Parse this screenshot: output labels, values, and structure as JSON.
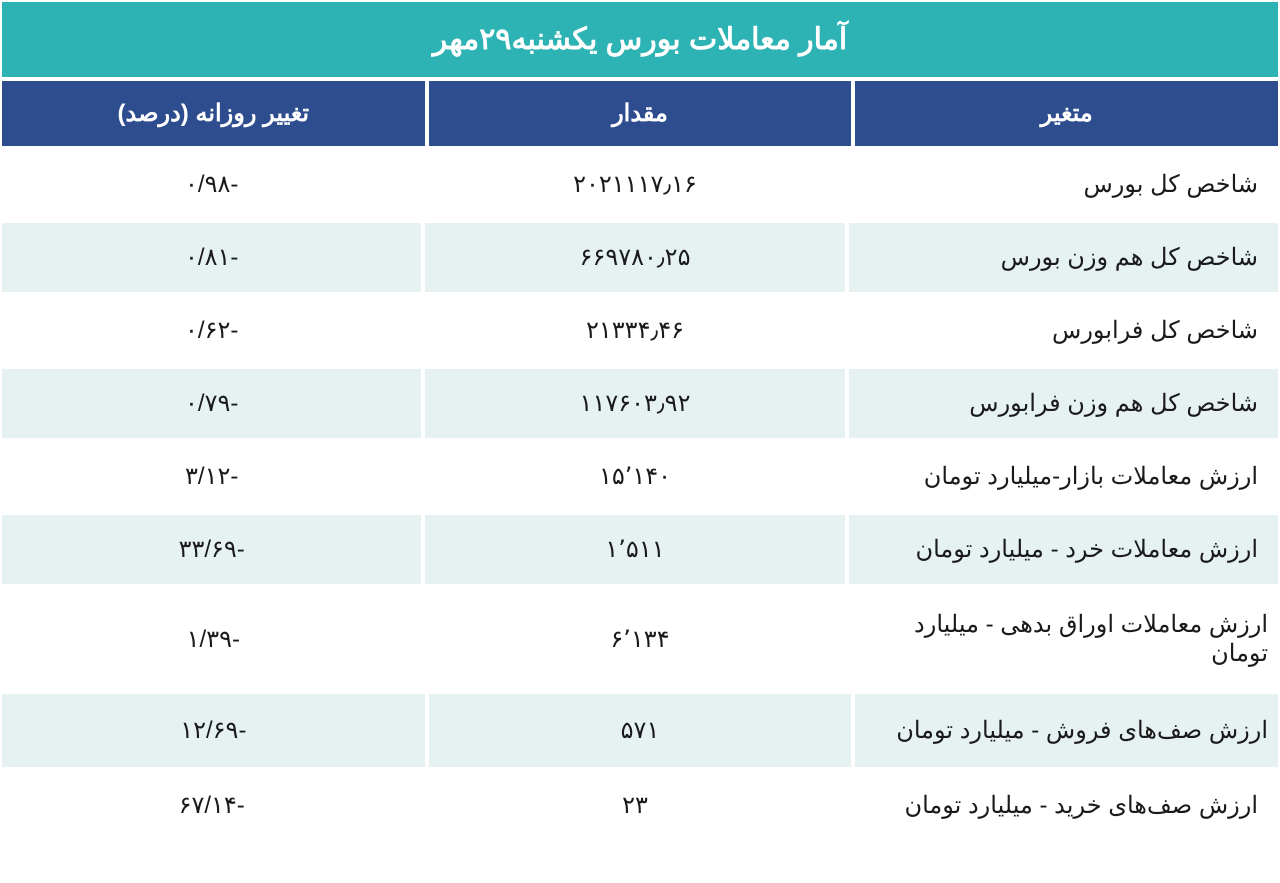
{
  "table": {
    "title": "آمار معاملات بورس یکشنبه۲۹مهر",
    "columns": {
      "variable": "متغیر",
      "value": "مقدار",
      "change": "تغییر روزانه (درصد)"
    },
    "rows": [
      {
        "variable": "شاخص کل بورس",
        "value": "۲۰۲۱۱۱۷٫۱۶",
        "change": "-۰/۹۸"
      },
      {
        "variable": "شاخص کل هم وزن بورس",
        "value": "۶۶۹۷۸۰٫۲۵",
        "change": "-۰/۸۱"
      },
      {
        "variable": "شاخص کل فرابورس",
        "value": "۲۱۳۳۴٫۴۶",
        "change": "-۰/۶۲"
      },
      {
        "variable": "شاخص کل هم وزن فرابورس",
        "value": "۱۱۷۶۰۳٫۹۲",
        "change": "-۰/۷۹"
      },
      {
        "variable": "ارزش معاملات بازار-میلیارد تومان",
        "value": "۱۵٬۱۴۰",
        "change": "-۳/۱۲"
      },
      {
        "variable": "ارزش معاملات خرد - میلیارد تومان",
        "value": "۱٬۵۱۱",
        "change": "-۳۳/۶۹"
      },
      {
        "variable": "ارزش معاملات اوراق بدهی - میلیارد تومان",
        "value": "۶٬۱۳۴",
        "change": "-۱/۳۹"
      },
      {
        "variable": "ارزش صف‌های فروش - میلیارد تومان",
        "value": "۵۷۱",
        "change": "-۱۲/۶۹"
      },
      {
        "variable": "ارزش صف‌های خرید - میلیارد تومان",
        "value": "۲۳",
        "change": "-۶۷/۱۴"
      }
    ],
    "styling": {
      "title_bg_color": "#2db3b3",
      "title_text_color": "#ffffff",
      "header_bg_color": "#2e4d8f",
      "header_text_color": "#ffffff",
      "row_even_bg_color": "#ffffff",
      "row_odd_bg_color": "#e6f2f2",
      "border_color": "#ffffff",
      "text_color": "#1a1a1a",
      "title_fontsize": 30,
      "header_fontsize": 24,
      "cell_fontsize": 24
    }
  }
}
